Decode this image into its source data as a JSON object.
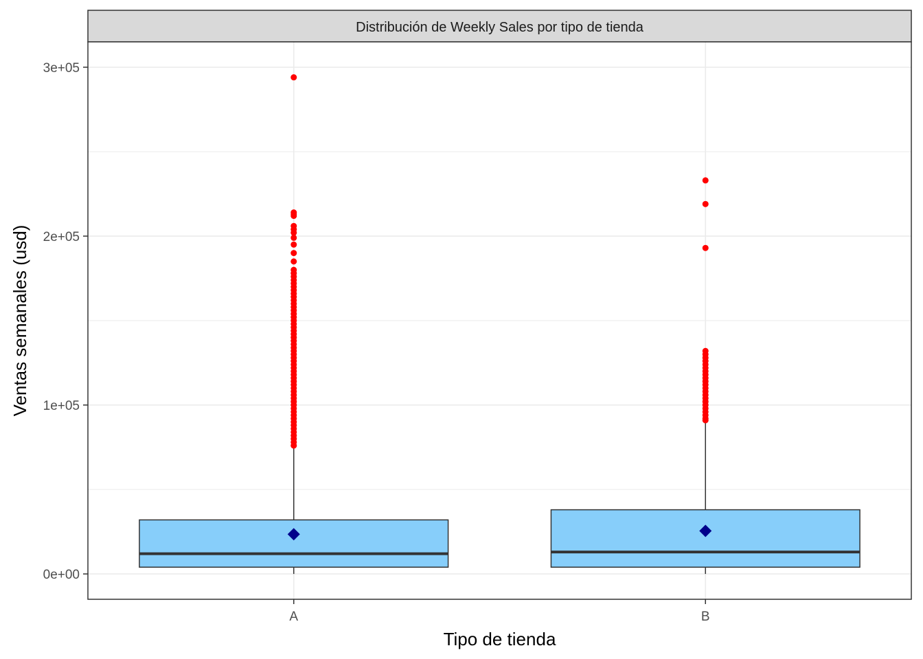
{
  "chart_data": {
    "type": "boxplot",
    "title": "Distribución de Weekly Sales por tipo de tienda",
    "xlabel": "Tipo de tienda",
    "ylabel": "Ventas semanales (usd)",
    "ylim": [
      -15000,
      315000
    ],
    "yticks": [
      0,
      100000,
      200000,
      300000
    ],
    "ytick_labels": [
      "0e+00",
      "1e+05",
      "2e+05",
      "3e+05"
    ],
    "grid": true,
    "colors": {
      "box_fill": "#87CEFA",
      "box_stroke": "#333333",
      "median": "#333333",
      "outlier": "#FF0000",
      "mean_marker": "#00008B",
      "strip_bg": "#D9D9D9",
      "grid": "#EBEBEB"
    },
    "categories": [
      "A",
      "B"
    ],
    "boxes": [
      {
        "category": "A",
        "q1": 4000,
        "median": 12000,
        "q3": 32000,
        "whisker_low": 0,
        "whisker_high": 75000,
        "mean": 23500,
        "outliers": [
          294000,
          214000,
          213000,
          212000,
          206000,
          204000,
          202000,
          199000,
          195000,
          190000,
          185000,
          180000,
          178000,
          176000,
          174000,
          172000,
          170000,
          168000,
          166000,
          164000,
          162000,
          160000,
          158000,
          156000,
          154000,
          152000,
          150000,
          148000,
          146000,
          144000,
          142000,
          140000,
          138000,
          136000,
          134000,
          132000,
          130000,
          128000,
          126000,
          124000,
          122000,
          120000,
          118000,
          116000,
          114000,
          112000,
          110000,
          108000,
          106000,
          104000,
          102000,
          100000,
          98000,
          96000,
          94000,
          92000,
          90000,
          88000,
          86000,
          84000,
          82000,
          80000,
          78000,
          76000
        ]
      },
      {
        "category": "B",
        "q1": 4000,
        "median": 13000,
        "q3": 38000,
        "whisker_low": 0,
        "whisker_high": 90000,
        "mean": 25500,
        "outliers": [
          233000,
          219000,
          193000,
          132000,
          130000,
          128000,
          126000,
          124000,
          122000,
          120000,
          118000,
          116000,
          114000,
          112000,
          110000,
          108000,
          106000,
          104000,
          102000,
          100000,
          98000,
          96000,
          94000,
          92000,
          91000
        ]
      }
    ]
  }
}
